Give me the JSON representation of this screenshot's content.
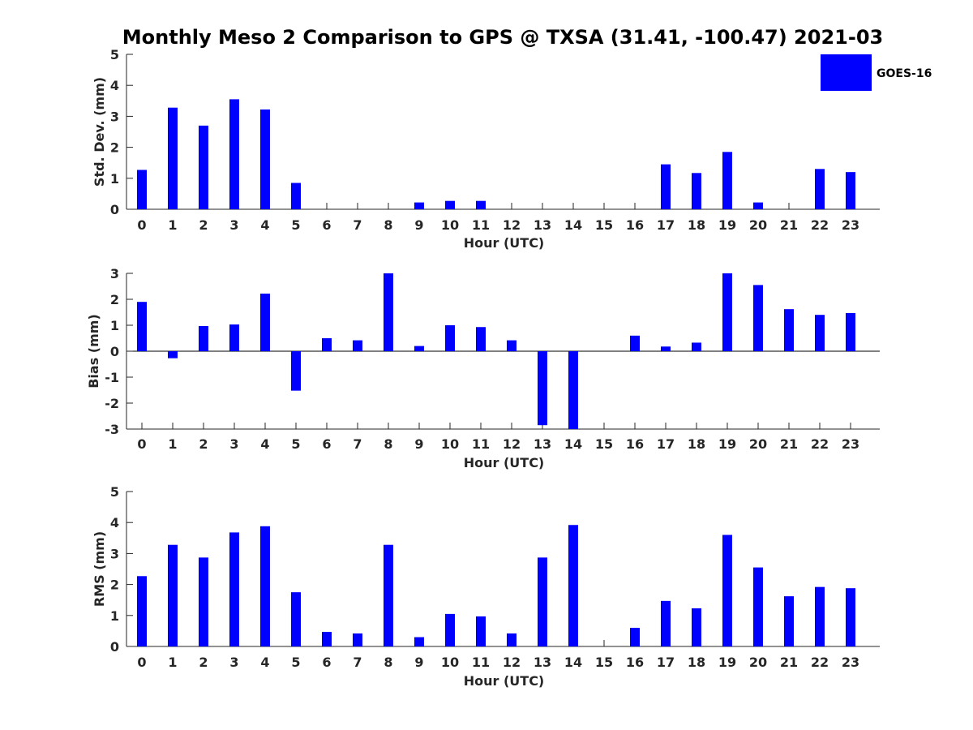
{
  "figure": {
    "title": "Monthly Meso 2 Comparison to GPS @ TXSA (31.41, -100.47) 2021-03"
  },
  "legend": {
    "label": "GOES-16",
    "color": "#0000ff",
    "placement": "top-right"
  },
  "chart_data": [
    {
      "type": "bar",
      "xlabel": "Hour (UTC)",
      "ylabel": "Std. Dev. (mm)",
      "ylim": [
        0,
        5
      ],
      "yticks": [
        0,
        1,
        2,
        3,
        4,
        5
      ],
      "categories": [
        "0",
        "1",
        "2",
        "3",
        "4",
        "5",
        "6",
        "7",
        "8",
        "9",
        "10",
        "11",
        "12",
        "13",
        "14",
        "15",
        "16",
        "17",
        "18",
        "19",
        "20",
        "21",
        "22",
        "23"
      ],
      "series": [
        {
          "name": "GOES-16",
          "values": [
            1.27,
            3.28,
            2.7,
            3.55,
            3.22,
            0.85,
            0,
            0,
            0,
            0.22,
            0.27,
            0.27,
            0,
            0,
            0,
            0,
            0,
            1.45,
            1.17,
            1.85,
            0.22,
            0,
            1.3,
            1.2
          ]
        }
      ]
    },
    {
      "type": "bar",
      "xlabel": "Hour (UTC)",
      "ylabel": "Bias (mm)",
      "ylim": [
        -3,
        3
      ],
      "yticks": [
        -3,
        -2,
        -1,
        0,
        1,
        2,
        3
      ],
      "categories": [
        "0",
        "1",
        "2",
        "3",
        "4",
        "5",
        "6",
        "7",
        "8",
        "9",
        "10",
        "11",
        "12",
        "13",
        "14",
        "15",
        "16",
        "17",
        "18",
        "19",
        "20",
        "21",
        "22",
        "23"
      ],
      "series": [
        {
          "name": "GOES-16",
          "values": [
            1.9,
            -0.27,
            0.97,
            1.03,
            2.22,
            -1.52,
            0.5,
            0.42,
            3.0,
            0.2,
            1.0,
            0.93,
            0.42,
            -2.85,
            -3.0,
            0,
            0.6,
            0.18,
            0.33,
            3.0,
            2.55,
            1.62,
            1.4,
            1.47
          ]
        }
      ]
    },
    {
      "type": "bar",
      "xlabel": "Hour (UTC)",
      "ylabel": "RMS (mm)",
      "ylim": [
        0,
        5
      ],
      "yticks": [
        0,
        1,
        2,
        3,
        4,
        5
      ],
      "categories": [
        "0",
        "1",
        "2",
        "3",
        "4",
        "5",
        "6",
        "7",
        "8",
        "9",
        "10",
        "11",
        "12",
        "13",
        "14",
        "15",
        "16",
        "17",
        "18",
        "19",
        "20",
        "21",
        "22",
        "23"
      ],
      "series": [
        {
          "name": "GOES-16",
          "values": [
            2.27,
            3.28,
            2.87,
            3.68,
            3.88,
            1.75,
            0.47,
            0.42,
            3.28,
            0.3,
            1.05,
            0.97,
            0.42,
            2.87,
            3.92,
            0,
            0.6,
            1.47,
            1.23,
            3.6,
            2.55,
            1.62,
            1.92,
            1.88
          ]
        }
      ]
    }
  ]
}
